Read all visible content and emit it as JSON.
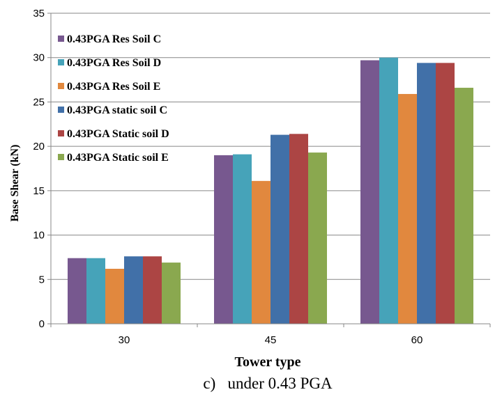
{
  "chart_data": {
    "type": "bar",
    "title": "",
    "caption": "c)   under 0.43 PGA",
    "xlabel": "Tower type",
    "ylabel": "Base Shear (kN)",
    "categories": [
      "30",
      "45",
      "60"
    ],
    "ylim": [
      0,
      35
    ],
    "yticks": [
      0,
      5,
      10,
      15,
      20,
      25,
      30,
      35
    ],
    "grid": true,
    "legend_position": "top-left",
    "series": [
      {
        "name": "0.43PGA Res Soil C",
        "color": "#77588f",
        "values": [
          7.4,
          19.0,
          29.7
        ]
      },
      {
        "name": "0.43PGA Res Soil D",
        "color": "#46a3b9",
        "values": [
          7.4,
          19.1,
          30.0
        ]
      },
      {
        "name": "0.43PGA Res Soil E",
        "color": "#e1883e",
        "values": [
          6.2,
          16.1,
          25.9
        ]
      },
      {
        "name": "0.43PGA static soil C",
        "color": "#4170a8",
        "values": [
          7.6,
          21.3,
          29.4
        ]
      },
      {
        "name": "0.43PGA Static soil D",
        "color": "#ac4544",
        "values": [
          7.6,
          21.4,
          29.4
        ]
      },
      {
        "name": "0.43PGA Static soil E",
        "color": "#8aa84f",
        "values": [
          6.9,
          19.3,
          26.6
        ]
      }
    ]
  }
}
